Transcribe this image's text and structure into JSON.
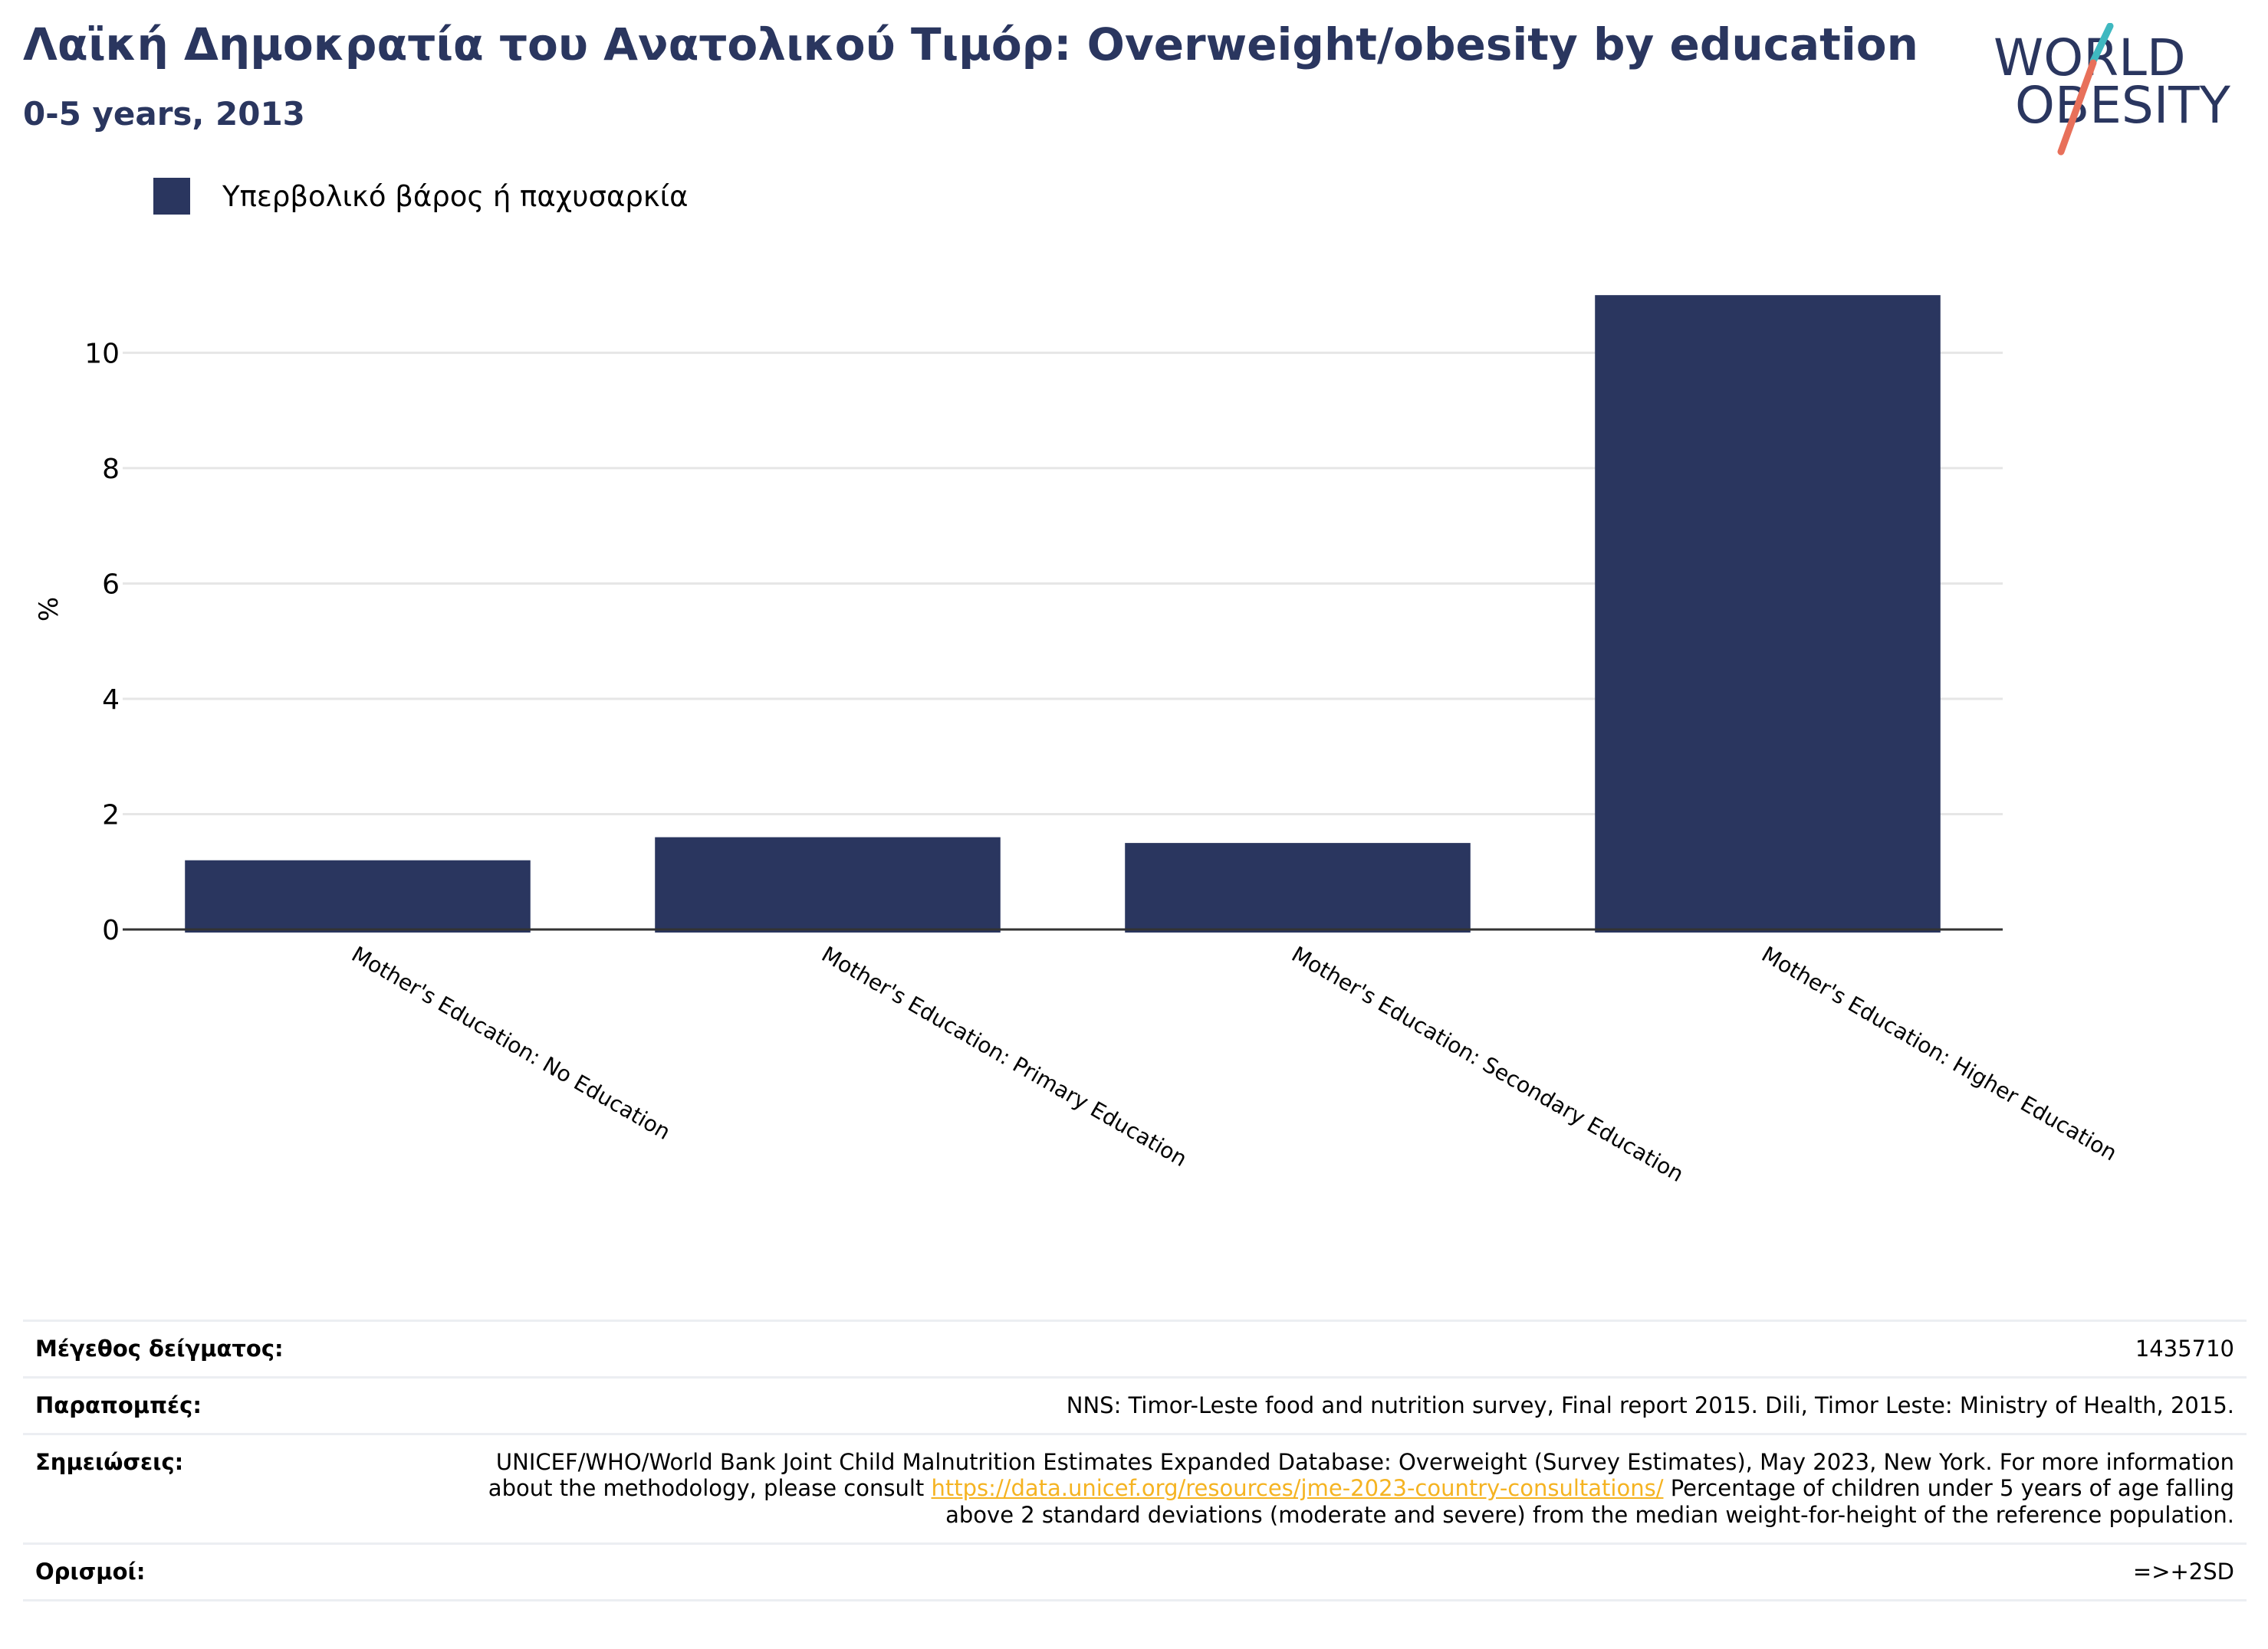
{
  "header": {
    "title": "Λαϊκή Δημοκρατία του Ανατολικού Τιμόρ: Overweight/obesity by education",
    "subtitle": "0-5 years, 2013"
  },
  "logo": {
    "line1": "WORLD",
    "line2": "OBESITY",
    "colors": {
      "text": "#2a365f",
      "slash_top": "#3fb8c0",
      "slash_bottom": "#e8705a"
    }
  },
  "colors": {
    "bar": "#2a365f",
    "link": "#f5b321",
    "grid": "#e6e6e6",
    "axis": "#333333"
  },
  "chart_data": {
    "type": "bar",
    "categories": [
      "Mother's Education: No Education",
      "Mother's Education: Primary Education",
      "Mother's Education: Secondary Education",
      "Mother's Education: Higher Education"
    ],
    "series": [
      {
        "name": "Υπερβολικό βάρος ή παχυσαρκία",
        "values": [
          1.2,
          1.6,
          1.5,
          11.0
        ]
      }
    ],
    "ylabel": "%",
    "ylim": [
      0,
      11.6
    ],
    "yticks": [
      0,
      2,
      4,
      6,
      8,
      10
    ],
    "grid": true,
    "legend": "top-left"
  },
  "info": {
    "sample_size": {
      "label": "Μέγεθος δείγματος:",
      "value": "1435710"
    },
    "references": {
      "label": "Παραπομπές:",
      "value": "NNS: Timor-Leste food and nutrition survey, Final report 2015. Dili, Timor Leste: Ministry of Health, 2015."
    },
    "notes": {
      "label": "Σημειώσεις:",
      "before": "UNICEF/WHO/World Bank Joint Child Malnutrition Estimates Expanded Database: Overweight (Survey Estimates), May 2023, New York. For more information about the methodology, please consult ",
      "link": "https://data.unicef.org/resources/jme-2023-country-consultations/",
      "after": " Percentage of children under 5 years of age falling above 2 standard deviations (moderate and severe) from the median weight-for-height of the reference population."
    },
    "definitions": {
      "label": "Ορισμοί:",
      "value": "=>+2SD"
    }
  }
}
